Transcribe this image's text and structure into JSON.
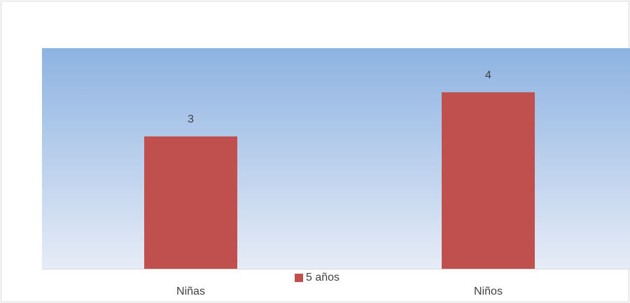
{
  "chart_data": {
    "type": "bar",
    "categories": [
      "Niñas",
      "Niños"
    ],
    "series": [
      {
        "name": "5 años",
        "color": "#c0504d",
        "values": [
          3,
          4
        ]
      }
    ],
    "ylim": [
      0,
      5
    ]
  }
}
